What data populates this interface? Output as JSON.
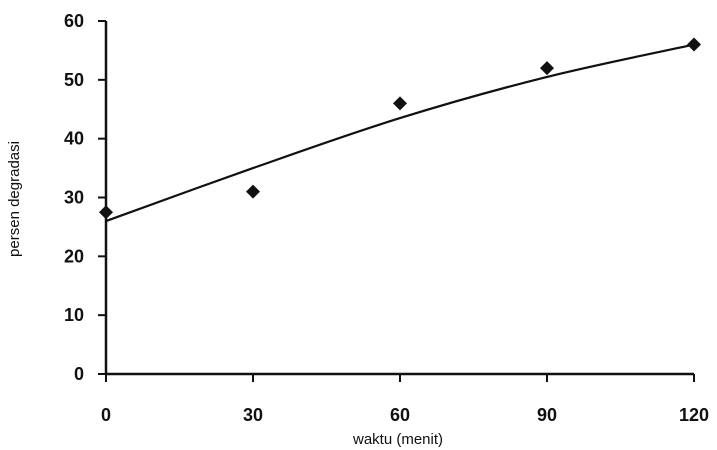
{
  "chart_data": {
    "type": "scatter",
    "title": "",
    "xlabel": "waktu (menit)",
    "ylabel": "persen degradasi",
    "xlim": [
      0,
      120
    ],
    "ylim": [
      0,
      60
    ],
    "x_ticks": [
      0,
      30,
      60,
      90,
      120
    ],
    "y_ticks": [
      0,
      10,
      20,
      30,
      40,
      50,
      60
    ],
    "x_tick_labels": [
      "0",
      "30",
      "60",
      "90",
      "120"
    ],
    "y_tick_labels": [
      "0",
      "10",
      "20",
      "30",
      "40",
      "50",
      "60"
    ],
    "grid": false,
    "legend": "none",
    "series": [
      {
        "type": "scatter",
        "marker": "diamond",
        "x": [
          0,
          30,
          60,
          90,
          120
        ],
        "y": [
          27.5,
          31,
          46,
          52,
          56
        ]
      }
    ],
    "trendline": {
      "type": "curve",
      "x": [
        0,
        30,
        60,
        90,
        120
      ],
      "y": [
        26,
        35,
        43.5,
        50.5,
        56
      ]
    }
  }
}
